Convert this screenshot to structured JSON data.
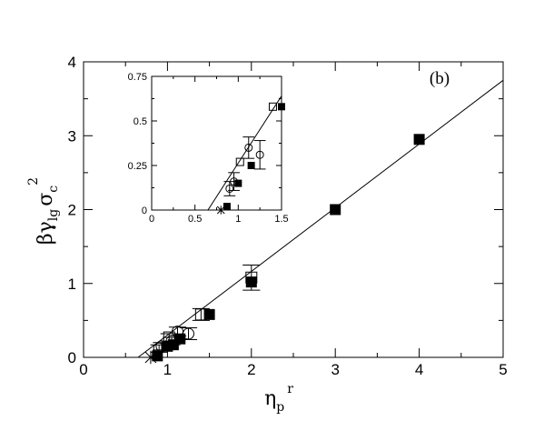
{
  "chart_data": [
    {
      "type": "scatter",
      "panel_label": "(b)",
      "xlabel": {
        "symbol": "η",
        "sub": "p",
        "sup": "r"
      },
      "ylabel": {
        "prefix": "βγ",
        "sub1": "lg",
        "mid": "σ",
        "sub2": "c",
        "sup": "2"
      },
      "xlim": [
        0,
        5
      ],
      "ylim": [
        0,
        4
      ],
      "xticks": [
        "0",
        "1",
        "2",
        "3",
        "4",
        "5"
      ],
      "yticks": [
        "0",
        "1",
        "2",
        "3",
        "4"
      ],
      "grid": false,
      "fit_line": {
        "x": [
          0.65,
          5.0
        ],
        "y": [
          0.0,
          3.75
        ]
      },
      "series": [
        {
          "marker": "filled-square",
          "points": [
            {
              "x": 0.88,
              "y": 0.02,
              "err": 0.0
            },
            {
              "x": 1.0,
              "y": 0.15,
              "err": 0.0
            },
            {
              "x": 1.07,
              "y": 0.17,
              "err": 0.0
            },
            {
              "x": 1.15,
              "y": 0.25,
              "err": 0.0
            },
            {
              "x": 1.5,
              "y": 0.58,
              "err": 0.0
            },
            {
              "x": 2.0,
              "y": 1.02,
              "err": 0.0
            },
            {
              "x": 3.0,
              "y": 2.0,
              "err": 0.0
            },
            {
              "x": 4.0,
              "y": 2.95,
              "err": 0.0
            }
          ]
        },
        {
          "marker": "open-square",
          "points": [
            {
              "x": 1.02,
              "y": 0.27,
              "err": 0.05
            },
            {
              "x": 1.4,
              "y": 0.58,
              "err": 0.08
            },
            {
              "x": 2.0,
              "y": 1.08,
              "err": 0.17
            }
          ]
        },
        {
          "marker": "open-circle",
          "points": [
            {
              "x": 0.9,
              "y": 0.12,
              "err": 0.05
            },
            {
              "x": 0.93,
              "y": 0.15,
              "err": 0.05
            },
            {
              "x": 1.05,
              "y": 0.22,
              "err": 0.05
            },
            {
              "x": 1.12,
              "y": 0.35,
              "err": 0.06
            },
            {
              "x": 1.25,
              "y": 0.32,
              "err": 0.08
            }
          ]
        },
        {
          "marker": "star",
          "points": [
            {
              "x": 0.8,
              "y": 0.0,
              "err": 0.0
            }
          ]
        }
      ]
    },
    {
      "type": "scatter",
      "role": "inset",
      "xlim": [
        0,
        1.5
      ],
      "ylim": [
        0,
        0.75
      ],
      "xticks": [
        "0",
        "0.5",
        "1",
        "1.5"
      ],
      "yticks": [
        "0",
        "0.25",
        "0.5",
        "0.75"
      ],
      "grid": false,
      "fit_line": {
        "x": [
          0.65,
          1.5
        ],
        "y": [
          0.0,
          0.64
        ]
      },
      "series": [
        {
          "marker": "filled-square",
          "points": [
            {
              "x": 0.87,
              "y": 0.02,
              "err": 0.0
            },
            {
              "x": 1.0,
              "y": 0.15,
              "err": 0.0
            },
            {
              "x": 1.15,
              "y": 0.25,
              "err": 0.0
            },
            {
              "x": 1.5,
              "y": 0.58,
              "err": 0.0
            }
          ]
        },
        {
          "marker": "open-square",
          "points": [
            {
              "x": 1.02,
              "y": 0.27,
              "err": 0.0
            },
            {
              "x": 1.4,
              "y": 0.58,
              "err": 0.0
            }
          ]
        },
        {
          "marker": "open-circle",
          "points": [
            {
              "x": 0.9,
              "y": 0.12,
              "err": 0.04
            },
            {
              "x": 0.95,
              "y": 0.16,
              "err": 0.05
            },
            {
              "x": 1.12,
              "y": 0.35,
              "err": 0.06
            },
            {
              "x": 1.25,
              "y": 0.31,
              "err": 0.08
            }
          ]
        },
        {
          "marker": "star",
          "points": [
            {
              "x": 0.8,
              "y": 0.0,
              "err": 0.0
            }
          ]
        }
      ]
    }
  ]
}
